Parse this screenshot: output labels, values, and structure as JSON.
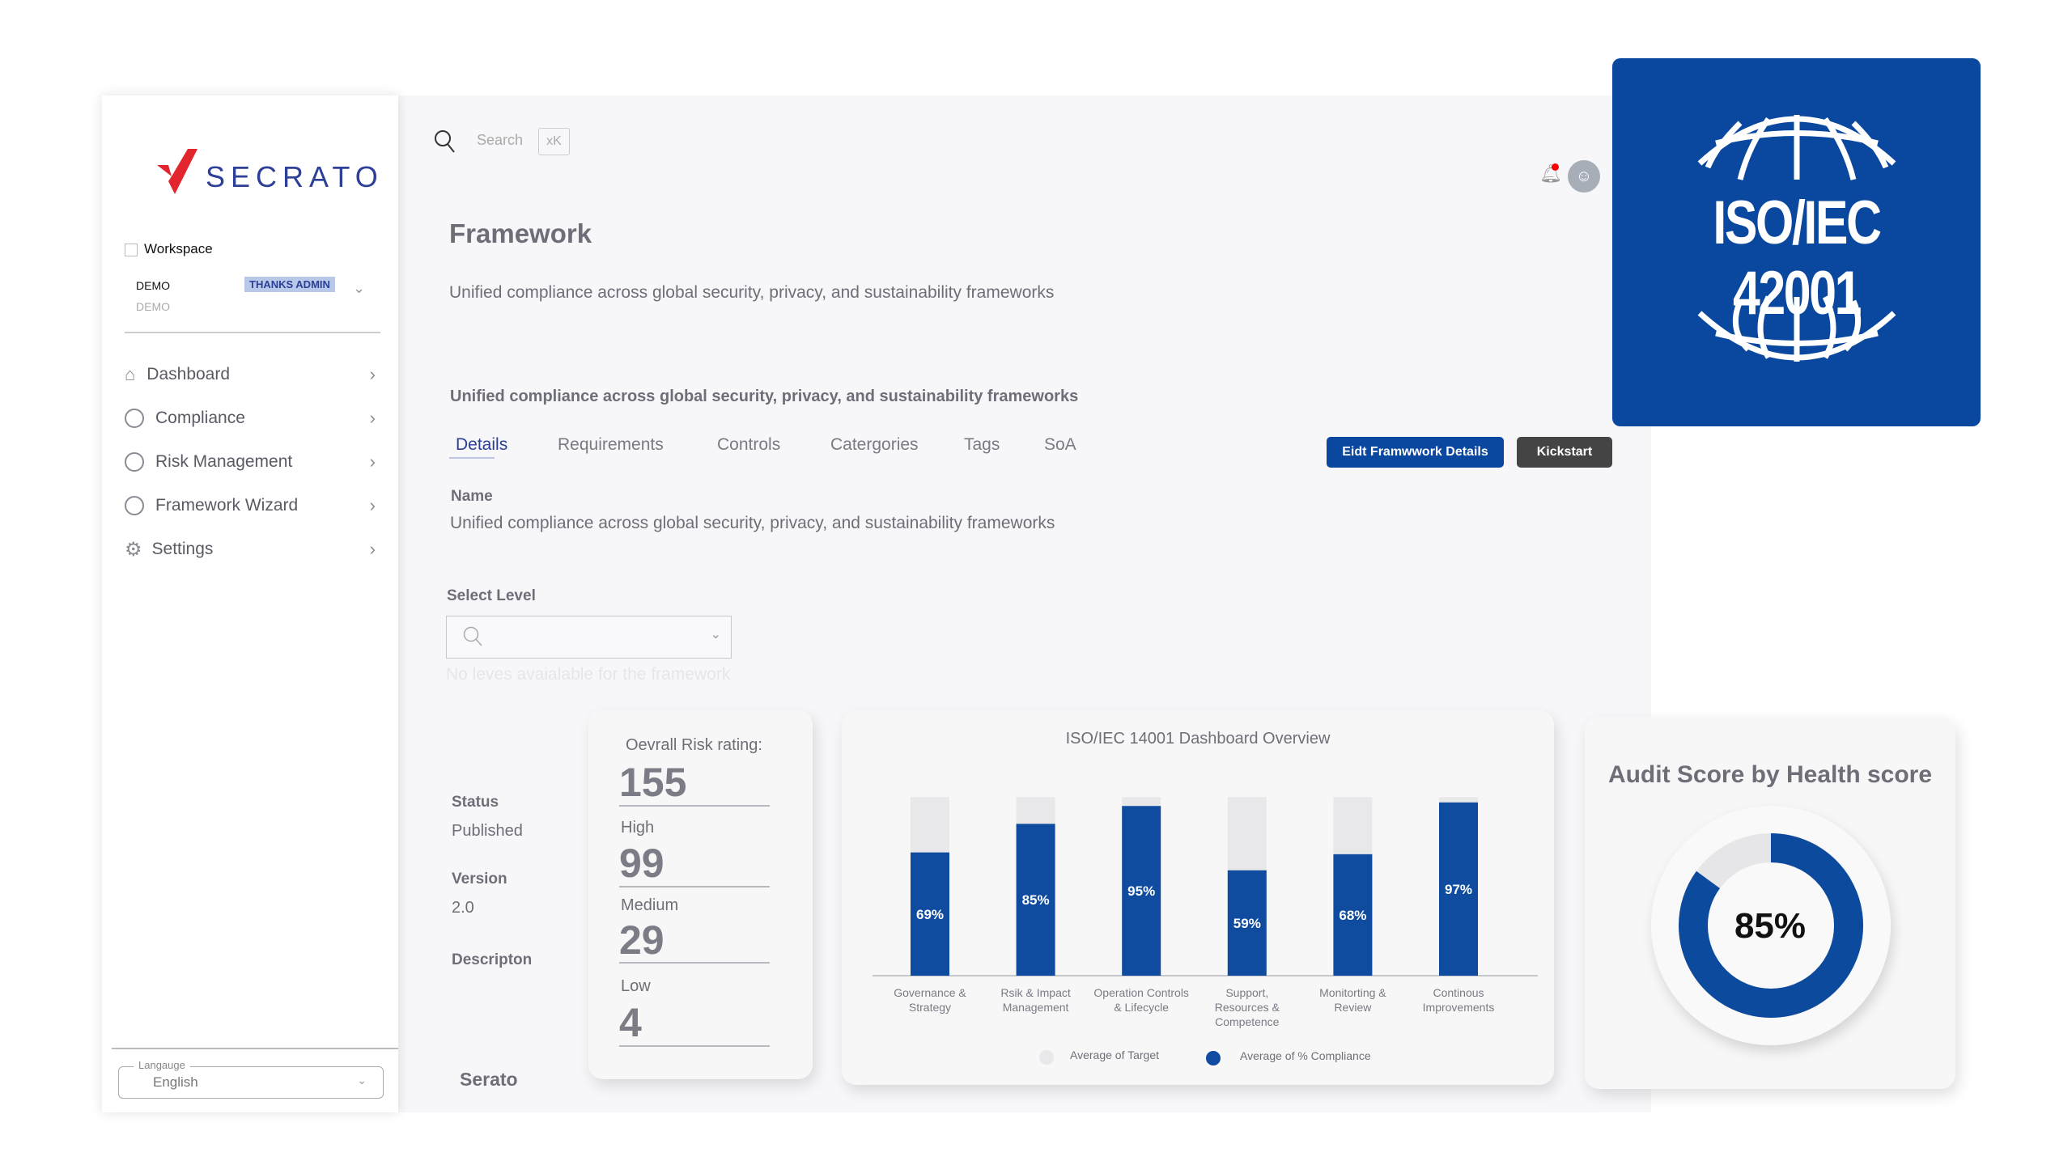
{
  "brand": {
    "logo_text": "SECRATO",
    "logo_colors": {
      "mark": "#e3262e",
      "text": "#2d3f96"
    }
  },
  "sidebar": {
    "workspace_label": "Workspace",
    "workspace_name": "DEMO",
    "workspace_sub": "DEMO",
    "workspace_badge": "THANKS ADMIN",
    "items": [
      {
        "label": "Dashboard",
        "icon": "home-icon"
      },
      {
        "label": "Compliance",
        "icon": "circle-icon"
      },
      {
        "label": "Risk Management",
        "icon": "circle-icon"
      },
      {
        "label": "Framework Wizard",
        "icon": "circle-icon"
      },
      {
        "label": "Settings",
        "icon": "gear-icon"
      }
    ],
    "language": {
      "label": "Langauge",
      "value": "English"
    }
  },
  "header": {
    "search_placeholder": "Search",
    "shortcut": "xK",
    "notification_dot_color": "#ff0000"
  },
  "page": {
    "title": "Framework",
    "subtitle": "Unified compliance across global security, privacy, and sustainability frameworks",
    "tabs": [
      {
        "label": "Details",
        "active": true
      },
      {
        "label": "Requirements"
      },
      {
        "label": "Controls"
      },
      {
        "label": "Catergories"
      },
      {
        "label": "Tags"
      },
      {
        "label": "SoA"
      }
    ],
    "section_heading": "Unified compliance across global security, privacy, and sustainability frameworks",
    "edit_button": "Eidt Framwwork Details",
    "kickstart_button": "Kickstart",
    "name_label": "Name",
    "name_value": "Unified compliance across global security, privacy, and sustainability frameworks",
    "select_level_label": "Select Level",
    "select_level_helper": "No leves avaialable for the framework",
    "status_label": "Status",
    "status_value": "Published",
    "version_label": "Version",
    "version_value": "2.0",
    "description_label": "Descripton",
    "footer_name": "Serato"
  },
  "risk": {
    "title": "Oevrall Risk rating:",
    "overall": "155",
    "high_label": "High",
    "high": "99",
    "medium_label": "Medium",
    "medium": "29",
    "low_label": "Low",
    "low": "4"
  },
  "badge": {
    "text": "ISO/IEC 42001",
    "color": "#0a479f"
  },
  "audit": {
    "title": "Audit Score by Health score",
    "score_label": "85%",
    "score": 85,
    "color": "#0c4a9e"
  },
  "chart_data": {
    "type": "bar",
    "title": "ISO/IEC 14001 Dashboard Overview",
    "categories": [
      "Governance & Strategy",
      "Rsik & Impact Management",
      "Operation Controls & Lifecycle",
      "Support, Resources & Competence",
      "Monitorting & Review",
      "Continous Improvements"
    ],
    "series": [
      {
        "name": "Average of Target",
        "values": [
          100,
          100,
          100,
          100,
          100,
          100
        ],
        "color": "#e8e8ea"
      },
      {
        "name": "Average of % Compliance",
        "values": [
          69,
          85,
          95,
          59,
          68,
          97
        ],
        "color": "#0f4c9f"
      }
    ],
    "data_labels": [
      "69%",
      "85%",
      "95%",
      "59%",
      "68%",
      "97%"
    ],
    "ylim": [
      0,
      100
    ],
    "grid": false,
    "legend": "bottom"
  }
}
